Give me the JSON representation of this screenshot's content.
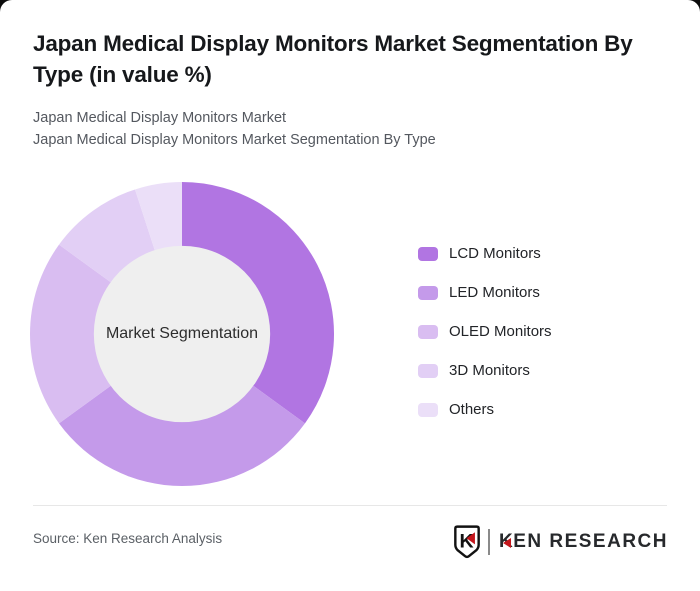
{
  "page": {
    "title": "Japan Medical Display Monitors Market Segmentation By Type (in value %)",
    "subtitle_line1": "Japan Medical Display Monitors Market",
    "subtitle_line2": "Japan Medical Display Monitors Market Segmentation By Type"
  },
  "chart_data": {
    "type": "pie",
    "variant": "donut",
    "title": "Japan Medical Display Monitors Market Segmentation By Type (in value %)",
    "center_label": "Market Segmentation",
    "categories": [
      "LCD Monitors",
      "LED Monitors",
      "OLED Monitors",
      "3D Monitors",
      "Others"
    ],
    "values": [
      35,
      30,
      20,
      10,
      5
    ],
    "unit": "value %",
    "colors": [
      "#b175e2",
      "#c49aea",
      "#d9bdf1",
      "#e2cff5",
      "#ebdff8"
    ],
    "start_angle_deg": 0,
    "direction": "clockwise",
    "legend_position": "right",
    "hole_color": "#efefef",
    "hole_ratio": 0.58
  },
  "footer": {
    "source": "Source: Ken Research Analysis",
    "logo": {
      "shield_letter": "K",
      "brand_first_letter": "K",
      "brand_rest": "EN RESEARCH",
      "accent_color": "#c4161c"
    }
  }
}
